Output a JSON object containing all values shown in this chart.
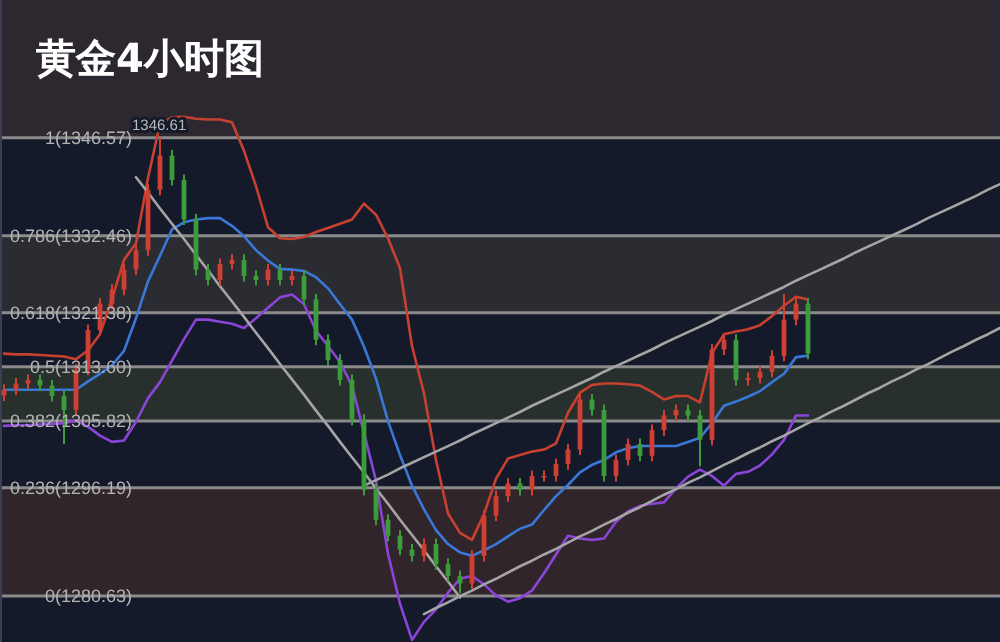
{
  "chart_data": {
    "type": "candlestick",
    "title": "黄金4小时图",
    "categories": [
      null,
      null,
      null,
      null,
      null,
      null,
      null,
      null,
      null,
      null,
      null,
      null,
      null,
      null,
      null,
      null,
      null,
      null,
      null,
      null,
      null,
      null,
      null,
      null,
      null,
      null,
      null,
      null,
      null,
      null,
      null,
      null,
      null,
      null,
      null,
      null,
      null,
      null,
      null,
      null,
      null,
      null,
      null,
      null,
      null,
      null,
      null,
      null,
      null,
      null,
      null,
      null,
      null,
      null,
      null,
      null,
      null,
      null,
      null,
      null,
      null,
      null,
      null,
      null,
      null,
      null,
      null,
      null,
      null,
      null,
      null,
      null,
      null,
      null,
      null,
      null,
      null,
      null,
      null,
      null,
      null,
      null,
      null,
      null
    ],
    "ohlc": [
      [
        1309.5,
        1311.1,
        1308.7,
        1310.3
      ],
      [
        1310.3,
        1312.0,
        1309.5,
        1311.2
      ],
      [
        1311.2,
        1312.5,
        1310.4,
        1311.7
      ],
      [
        1311.7,
        1312.5,
        1310.1,
        1310.9
      ],
      [
        1310.9,
        1311.7,
        1308.6,
        1309.4
      ],
      [
        1309.4,
        1310.2,
        1302.5,
        1307.4
      ],
      [
        1307.4,
        1314.0,
        1306.6,
        1313.2
      ],
      [
        1313.2,
        1319.7,
        1312.4,
        1318.9
      ],
      [
        1318.9,
        1323.5,
        1318.1,
        1322.7
      ],
      [
        1322.7,
        1325.5,
        1321.9,
        1324.7
      ],
      [
        1324.7,
        1328.4,
        1323.9,
        1327.6
      ],
      [
        1327.6,
        1331.2,
        1326.8,
        1330.4
      ],
      [
        1330.4,
        1339.9,
        1329.6,
        1339.1
      ],
      [
        1339.1,
        1346.61,
        1338.3,
        1344.0
      ],
      [
        1344.0,
        1344.8,
        1339.7,
        1340.5
      ],
      [
        1340.5,
        1341.3,
        1334.0,
        1334.8
      ],
      [
        1334.8,
        1335.6,
        1326.8,
        1327.6
      ],
      [
        1327.6,
        1328.4,
        1325.3,
        1326.1
      ],
      [
        1326.1,
        1329.2,
        1325.3,
        1328.4
      ],
      [
        1328.4,
        1329.8,
        1327.6,
        1329.0
      ],
      [
        1329.0,
        1329.8,
        1325.9,
        1326.7
      ],
      [
        1326.7,
        1327.5,
        1325.3,
        1326.1
      ],
      [
        1326.1,
        1328.4,
        1325.3,
        1327.6
      ],
      [
        1327.6,
        1328.4,
        1325.3,
        1326.1
      ],
      [
        1326.1,
        1327.5,
        1325.3,
        1326.7
      ],
      [
        1326.7,
        1327.5,
        1322.5,
        1323.3
      ],
      [
        1323.3,
        1324.1,
        1316.7,
        1317.5
      ],
      [
        1317.5,
        1318.3,
        1313.8,
        1314.6
      ],
      [
        1314.6,
        1315.4,
        1310.9,
        1311.7
      ],
      [
        1311.7,
        1312.5,
        1305.2,
        1306.0
      ],
      [
        1306.0,
        1306.8,
        1295.1,
        1295.9
      ],
      [
        1295.9,
        1296.7,
        1290.8,
        1291.6
      ],
      [
        1291.6,
        1292.4,
        1288.5,
        1289.3
      ],
      [
        1289.3,
        1290.1,
        1286.5,
        1287.3
      ],
      [
        1287.3,
        1288.1,
        1285.6,
        1286.4
      ],
      [
        1286.4,
        1288.9,
        1285.6,
        1288.1
      ],
      [
        1288.1,
        1288.9,
        1284.4,
        1285.2
      ],
      [
        1285.2,
        1286.0,
        1282.7,
        1283.5
      ],
      [
        1283.5,
        1284.3,
        1281.0,
        1282.4
      ],
      [
        1282.4,
        1287.2,
        1281.6,
        1286.4
      ],
      [
        1286.4,
        1293.0,
        1285.6,
        1292.2
      ],
      [
        1292.2,
        1295.8,
        1291.4,
        1295.0
      ],
      [
        1295.0,
        1297.6,
        1294.2,
        1296.8
      ],
      [
        1296.8,
        1297.6,
        1295.1,
        1295.9
      ],
      [
        1295.9,
        1298.7,
        1295.1,
        1297.9
      ],
      [
        1297.9,
        1298.7,
        1297.1,
        1297.9
      ],
      [
        1297.9,
        1300.4,
        1297.1,
        1299.6
      ],
      [
        1299.6,
        1302.5,
        1298.8,
        1301.7
      ],
      [
        1301.7,
        1309.7,
        1300.9,
        1308.9
      ],
      [
        1308.9,
        1309.7,
        1306.6,
        1307.4
      ],
      [
        1307.4,
        1308.2,
        1297.1,
        1297.9
      ],
      [
        1297.9,
        1301.0,
        1297.1,
        1300.2
      ],
      [
        1300.2,
        1303.3,
        1299.4,
        1302.5
      ],
      [
        1302.5,
        1303.3,
        1300.0,
        1300.8
      ],
      [
        1300.8,
        1305.3,
        1300.0,
        1304.5
      ],
      [
        1304.5,
        1307.4,
        1303.7,
        1306.6
      ],
      [
        1306.6,
        1308.2,
        1305.8,
        1307.4
      ],
      [
        1307.4,
        1308.2,
        1305.8,
        1306.6
      ],
      [
        1306.6,
        1307.4,
        1299.3,
        1303.1
      ],
      [
        1303.1,
        1316.9,
        1302.3,
        1316.1
      ],
      [
        1316.1,
        1318.3,
        1315.3,
        1317.5
      ],
      [
        1317.5,
        1318.3,
        1310.9,
        1311.7
      ],
      [
        1311.7,
        1312.8,
        1310.9,
        1312.0
      ],
      [
        1312.0,
        1313.7,
        1311.2,
        1312.9
      ],
      [
        1312.9,
        1316.0,
        1312.1,
        1315.2
      ],
      [
        1315.2,
        1324.1,
        1314.4,
        1320.4
      ],
      [
        1320.4,
        1323.5,
        1319.6,
        1322.7
      ],
      [
        1322.7,
        1323.5,
        1314.7,
        1315.5
      ],
      null,
      null,
      null,
      null,
      null,
      null,
      null,
      null,
      null,
      null,
      null,
      null,
      null,
      null,
      null,
      null
    ],
    "ylim": [
      1274.0,
      1366.4
    ],
    "series": [
      {
        "type": "line",
        "color": "#c8402f",
        "values": [
          1315.5,
          1315.4,
          1315.4,
          1315.3,
          1315.2,
          1315.1,
          1314.7,
          1316.0,
          1318.3,
          1323.4,
          1329.0,
          1331.4,
          1340.8,
          1348.6,
          1349.5,
          1349.6,
          1349.3,
          1349.2,
          1349.2,
          1348.8,
          1344.7,
          1339.6,
          1333.7,
          1332.1,
          1332.0,
          1332.3,
          1333.0,
          1333.6,
          1334.2,
          1334.8,
          1337.1,
          1335.5,
          1332.1,
          1327.8,
          1316.6,
          1309.8,
          1300.2,
          1292.5,
          1289.7,
          1288.7,
          1292.4,
          1297.5,
          1300.4,
          1300.9,
          1301.4,
          1301.7,
          1302.6,
          1307.0,
          1309.9,
          1311.0,
          1311.2,
          1311.2,
          1311.1,
          1310.9,
          1310.0,
          1308.9,
          1309.4,
          1309.4,
          1308.5,
          1315.6,
          1318.3,
          1318.7,
          1319.0,
          1319.6,
          1320.9,
          1322.4,
          1323.7,
          1323.3,
          null,
          null,
          null,
          null,
          null,
          null,
          null,
          null,
          null,
          null,
          null,
          null,
          null,
          null,
          null,
          null
        ]
      },
      {
        "type": "line",
        "color": "#3a78d8",
        "values": [
          1310.3,
          1310.3,
          1310.3,
          1310.3,
          1310.3,
          1310.3,
          1310.3,
          1311.5,
          1312.6,
          1313.8,
          1315.9,
          1320.6,
          1325.9,
          1329.6,
          1333.4,
          1334.4,
          1334.8,
          1335.0,
          1335.0,
          1333.9,
          1332.4,
          1330.4,
          1328.9,
          1327.7,
          1327.6,
          1327.4,
          1326.5,
          1324.9,
          1322.6,
          1320.4,
          1316.5,
          1311.9,
          1305.8,
          1300.9,
          1296.5,
          1293.1,
          1290.1,
          1288.1,
          1286.9,
          1286.4,
          1287.2,
          1288.1,
          1289.2,
          1290.3,
          1290.9,
          1293.0,
          1295.0,
          1296.6,
          1298.4,
          1299.5,
          1300.2,
          1301.3,
          1301.9,
          1302.2,
          1302.2,
          1302.2,
          1302.2,
          1302.8,
          1303.4,
          1305.5,
          1308.0,
          1308.6,
          1309.3,
          1310.1,
          1311.4,
          1312.6,
          1315.0,
          1315.2,
          null,
          null,
          null,
          null,
          null,
          null,
          null,
          null,
          null,
          null,
          null,
          null,
          null,
          null,
          null,
          null
        ]
      },
      {
        "type": "line",
        "color": "#8a45d6",
        "values": [
          1305.1,
          1305.2,
          1305.2,
          1305.3,
          1305.4,
          1305.5,
          1305.9,
          1305.0,
          1303.7,
          1302.8,
          1303.0,
          1305.7,
          1309.1,
          1311.4,
          1314.5,
          1317.6,
          1320.4,
          1320.4,
          1320.1,
          1319.8,
          1319.2,
          1320.6,
          1322.1,
          1323.6,
          1324.0,
          1322.6,
          1318.8,
          1316.6,
          1314.3,
          1310.9,
          1304.1,
          1297.2,
          1286.7,
          1279.5,
          1274.3,
          1276.9,
          1278.7,
          1281.1,
          1283.1,
          1283.5,
          1282.3,
          1280.7,
          1279.8,
          1280.3,
          1281.4,
          1283.9,
          1286.6,
          1289.3,
          1288.9,
          1288.7,
          1288.9,
          1291.3,
          1292.8,
          1293.6,
          1293.9,
          1294.1,
          1296.1,
          1297.8,
          1298.8,
          1297.9,
          1296.5,
          1298.2,
          1298.5,
          1299.4,
          1301.0,
          1303.1,
          1306.6,
          1306.6,
          null,
          null,
          null,
          null,
          null,
          null,
          null,
          null,
          null,
          null,
          null,
          null,
          null,
          null,
          null,
          null
        ]
      },
      {
        "type": "line",
        "color": "#a5a5a5",
        "values": [
          null,
          null,
          null,
          null,
          null,
          null,
          null,
          null,
          null,
          null,
          null,
          1340.9,
          1338.7,
          1336.4,
          1334.2,
          1332.0,
          1329.7,
          1327.5,
          1325.2,
          1323.0,
          1320.8,
          1318.5,
          1316.3,
          1314.0,
          1311.8,
          1309.6,
          1307.3,
          1305.1,
          1302.8,
          1300.6,
          1298.4,
          1296.1,
          1293.9,
          1291.6,
          1289.4,
          1287.2,
          1284.9,
          1282.7,
          1280.4,
          null,
          null,
          null,
          null,
          null,
          null,
          null,
          null,
          null,
          null,
          null,
          null,
          null,
          null,
          null,
          null,
          null,
          null,
          null,
          null,
          null,
          null,
          null,
          null,
          null,
          null,
          null,
          null,
          null,
          null,
          null,
          null,
          null,
          null,
          null,
          null,
          null,
          null,
          null,
          null,
          null,
          null,
          null,
          null,
          null
        ]
      },
      {
        "type": "line",
        "color": "#a5a5a5",
        "values": [
          null,
          null,
          null,
          null,
          null,
          null,
          null,
          null,
          null,
          null,
          null,
          null,
          null,
          null,
          null,
          null,
          null,
          null,
          null,
          null,
          null,
          null,
          null,
          null,
          null,
          null,
          null,
          null,
          null,
          null,
          1296.5,
          1297.3,
          1298.1,
          1299.0,
          1299.8,
          1300.6,
          1301.4,
          1302.2,
          1303.0,
          1303.9,
          1304.7,
          1305.5,
          1306.3,
          1307.1,
          1308.0,
          1308.8,
          1309.6,
          1310.4,
          1311.2,
          1312.0,
          1312.9,
          1313.7,
          1314.5,
          1315.3,
          1316.1,
          1317.0,
          1317.8,
          1318.6,
          1319.4,
          1320.2,
          1321.1,
          1321.9,
          1322.7,
          1323.5,
          1324.3,
          1325.1,
          1326.0,
          1326.8,
          1327.6,
          1328.4,
          1329.2,
          1330.1,
          1330.9,
          1331.7,
          1332.5,
          1333.3,
          1334.1,
          1335.0,
          1335.8,
          1336.6,
          1337.4,
          1338.2,
          1339.1,
          1339.9
        ]
      },
      {
        "type": "line",
        "color": "#a5a5a5",
        "values": [
          null,
          null,
          null,
          null,
          null,
          null,
          null,
          null,
          null,
          null,
          null,
          null,
          null,
          null,
          null,
          null,
          null,
          null,
          null,
          null,
          null,
          null,
          null,
          null,
          null,
          null,
          null,
          null,
          null,
          null,
          null,
          null,
          null,
          null,
          null,
          1278.0,
          1278.9,
          1279.7,
          1280.6,
          1281.4,
          1282.3,
          1283.1,
          1284.0,
          1284.9,
          1285.7,
          1286.6,
          1287.4,
          1288.3,
          1289.2,
          1290.0,
          1290.9,
          1291.7,
          1292.6,
          1293.4,
          1294.3,
          1295.2,
          1296.0,
          1296.9,
          1297.7,
          1298.6,
          1299.5,
          1300.3,
          1301.2,
          1302.0,
          1302.9,
          1303.7,
          1304.6,
          1305.5,
          1306.3,
          1307.2,
          1308.0,
          1308.9,
          1309.8,
          1310.6,
          1311.5,
          1312.3,
          1313.2,
          1314.0,
          1314.9,
          1315.8,
          1316.6,
          1317.5,
          1318.3,
          1319.2
        ]
      }
    ],
    "ref_lines": [
      {
        "axis": "y",
        "value": 1346.57,
        "label": "1(1346.57)",
        "color": "#8a8a8a"
      },
      {
        "axis": "y",
        "value": 1332.46,
        "label": "0.786(1332.46)",
        "color": "#8a8a8a"
      },
      {
        "axis": "y",
        "value": 1321.38,
        "label": "0.618(1321.38)",
        "color": "#8a8a8a"
      },
      {
        "axis": "y",
        "value": 1313.6,
        "label": "0.5(1313.60)",
        "color": "#8a8a8a"
      },
      {
        "axis": "y",
        "value": 1305.82,
        "label": "0.382(1305.82)",
        "color": "#8a8a8a"
      },
      {
        "axis": "y",
        "value": 1296.19,
        "label": "0.236(1296.19)",
        "color": "#8a8a8a"
      },
      {
        "axis": "y",
        "value": 1280.63,
        "label": "0(1280.63)",
        "color": "#8a8a8a"
      }
    ],
    "bands": [
      {
        "axis": "y",
        "from": 1346.57,
        "to": 1366.4,
        "color": "#2d2830"
      },
      {
        "axis": "y",
        "from": 1321.38,
        "to": 1332.46,
        "color": "#2b2c32"
      },
      {
        "axis": "y",
        "from": 1305.82,
        "to": 1313.6,
        "color": "#27302d"
      },
      {
        "axis": "y",
        "from": 1280.63,
        "to": 1296.19,
        "color": "#30252b"
      }
    ],
    "annotations": [
      {
        "text": "1346.61",
        "y": 1346.61
      }
    ]
  }
}
